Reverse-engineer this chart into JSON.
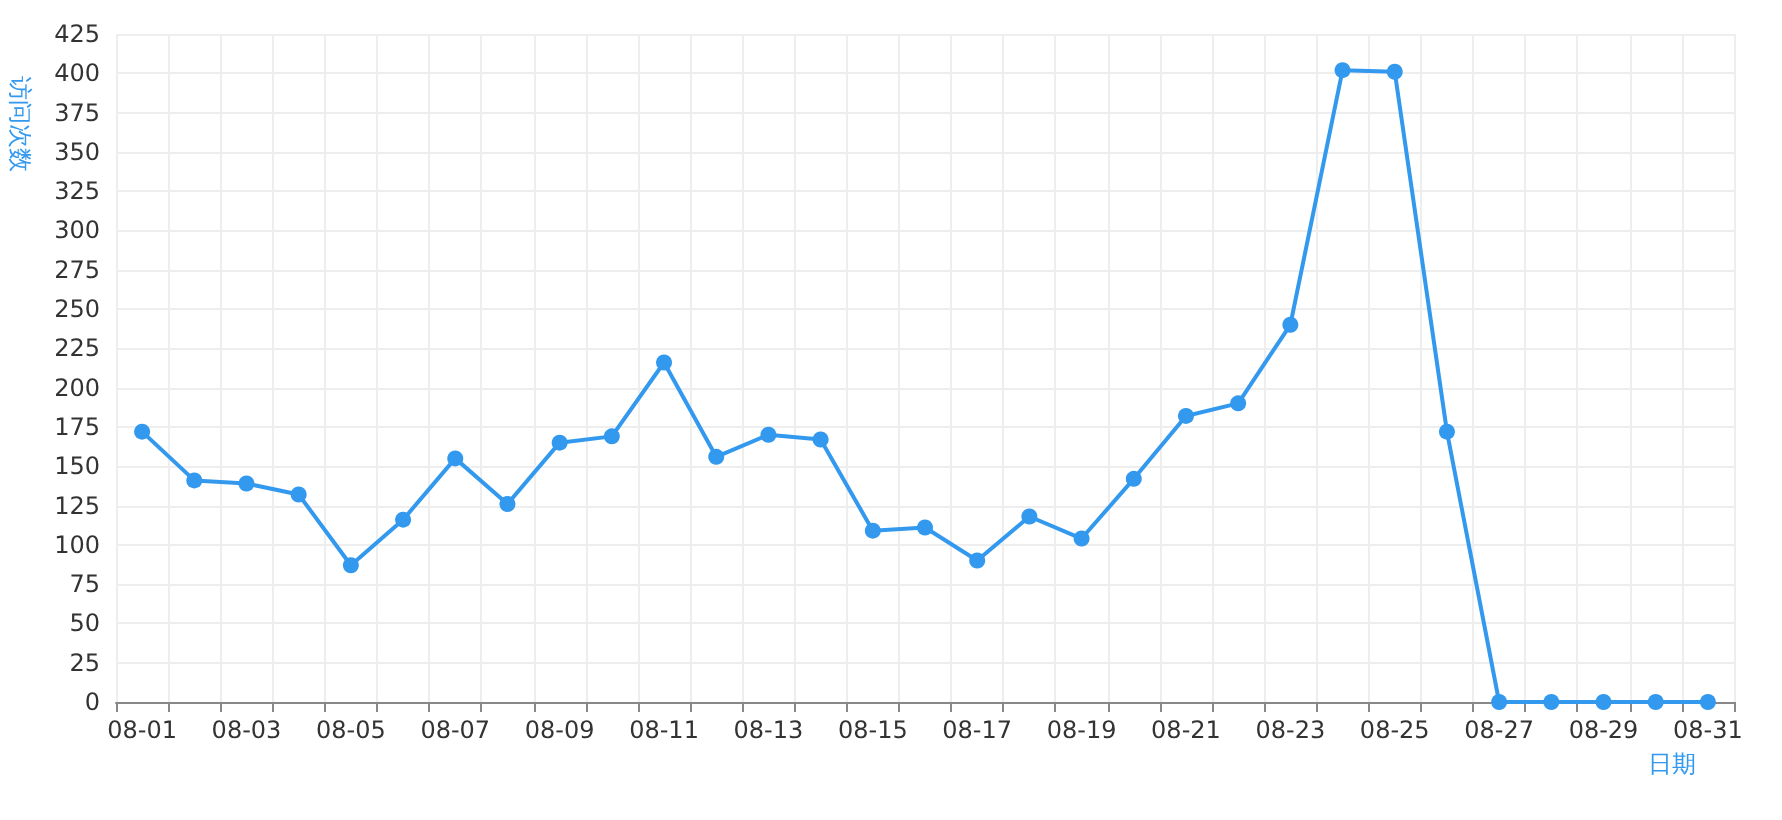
{
  "chart_data": {
    "type": "line",
    "xlabel": "日期",
    "ylabel": "访问次数",
    "categories": [
      "08-01",
      null,
      "08-03",
      null,
      "08-05",
      null,
      "08-07",
      null,
      "08-09",
      null,
      "08-11",
      null,
      "08-13",
      null,
      "08-15",
      null,
      "08-17",
      null,
      "08-19",
      null,
      "08-21",
      null,
      "08-23",
      null,
      "08-25",
      null,
      "08-27",
      null,
      "08-29",
      null,
      "08-31"
    ],
    "series": [
      {
        "color": "#3399ee",
        "values": [
          172,
          141,
          139,
          132,
          87,
          116,
          155,
          126,
          165,
          169,
          216,
          156,
          170,
          167,
          109,
          111,
          90,
          118,
          104,
          142,
          182,
          190,
          240,
          402,
          401,
          172,
          0,
          0,
          0,
          0,
          0
        ]
      }
    ],
    "ylim": [
      0,
      425
    ],
    "yticks": [
      0,
      25,
      50,
      75,
      100,
      125,
      150,
      175,
      200,
      225,
      250,
      275,
      300,
      325,
      350,
      375,
      400,
      425
    ],
    "grid": true,
    "marker": "circle",
    "line_style": "solid"
  }
}
